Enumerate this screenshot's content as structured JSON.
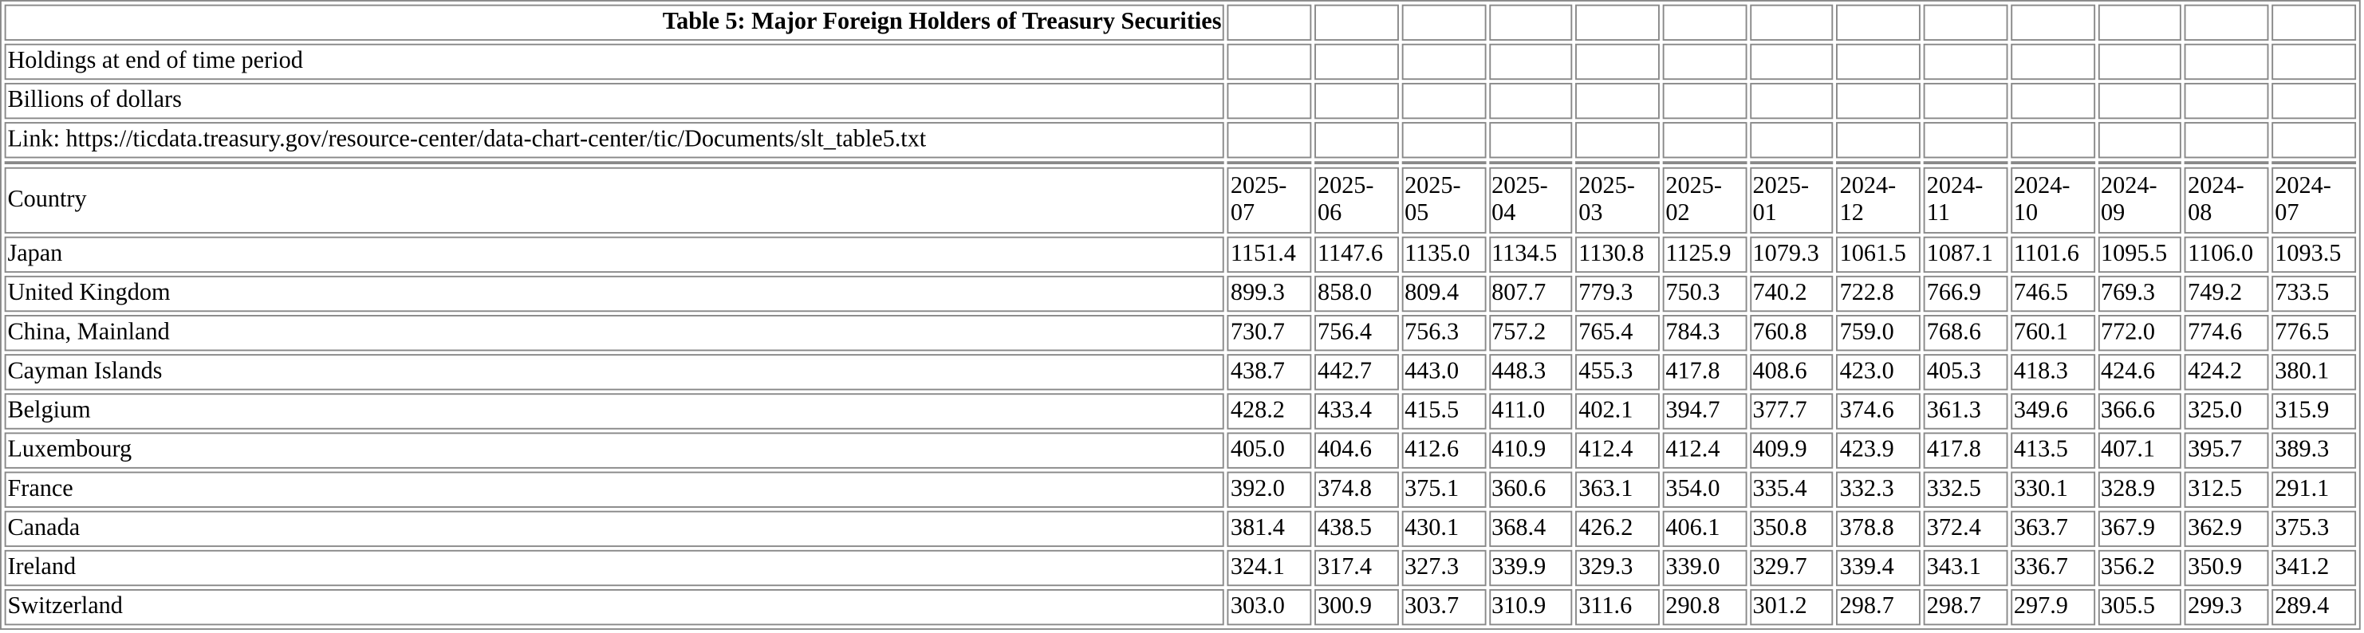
{
  "header": {
    "title": "Table 5: Major Foreign Holders of Treasury Securities",
    "lines": [
      "Holdings at end of time period",
      "Billions of dollars",
      "Link: https://ticdata.treasury.gov/resource-center/data-chart-center/tic/Documents/slt_table5.txt"
    ]
  },
  "table": {
    "columns": [
      "Country",
      "2025-07",
      "2025-06",
      "2025-05",
      "2025-04",
      "2025-03",
      "2025-02",
      "2025-01",
      "2024-12",
      "2024-11",
      "2024-10",
      "2024-09",
      "2024-08",
      "2024-07"
    ],
    "rows": [
      [
        "Japan",
        "1151.4",
        "1147.6",
        "1135.0",
        "1134.5",
        "1130.8",
        "1125.9",
        "1079.3",
        "1061.5",
        "1087.1",
        "1101.6",
        "1095.5",
        "1106.0",
        "1093.5"
      ],
      [
        "United Kingdom",
        "899.3",
        "858.0",
        "809.4",
        "807.7",
        "779.3",
        "750.3",
        "740.2",
        "722.8",
        "766.9",
        "746.5",
        "769.3",
        "749.2",
        "733.5"
      ],
      [
        "China, Mainland",
        "730.7",
        "756.4",
        "756.3",
        "757.2",
        "765.4",
        "784.3",
        "760.8",
        "759.0",
        "768.6",
        "760.1",
        "772.0",
        "774.6",
        "776.5"
      ],
      [
        "Cayman Islands",
        "438.7",
        "442.7",
        "443.0",
        "448.3",
        "455.3",
        "417.8",
        "408.6",
        "423.0",
        "405.3",
        "418.3",
        "424.6",
        "424.2",
        "380.1"
      ],
      [
        "Belgium",
        "428.2",
        "433.4",
        "415.5",
        "411.0",
        "402.1",
        "394.7",
        "377.7",
        "374.6",
        "361.3",
        "349.6",
        "366.6",
        "325.0",
        "315.9"
      ],
      [
        "Luxembourg",
        "405.0",
        "404.6",
        "412.6",
        "410.9",
        "412.4",
        "412.4",
        "409.9",
        "423.9",
        "417.8",
        "413.5",
        "407.1",
        "395.7",
        "389.3"
      ],
      [
        "France",
        "392.0",
        "374.8",
        "375.1",
        "360.6",
        "363.1",
        "354.0",
        "335.4",
        "332.3",
        "332.5",
        "330.1",
        "328.9",
        "312.5",
        "291.1"
      ],
      [
        "Canada",
        "381.4",
        "438.5",
        "430.1",
        "368.4",
        "426.2",
        "406.1",
        "350.8",
        "378.8",
        "372.4",
        "363.7",
        "367.9",
        "362.9",
        "375.3"
      ],
      [
        "Ireland",
        "324.1",
        "317.4",
        "327.3",
        "339.9",
        "329.3",
        "339.0",
        "329.7",
        "339.4",
        "343.1",
        "336.7",
        "356.2",
        "350.9",
        "341.2"
      ],
      [
        "Switzerland",
        "303.0",
        "300.9",
        "303.7",
        "310.9",
        "311.6",
        "290.8",
        "301.2",
        "298.7",
        "298.7",
        "297.9",
        "305.5",
        "299.3",
        "289.4"
      ]
    ]
  }
}
